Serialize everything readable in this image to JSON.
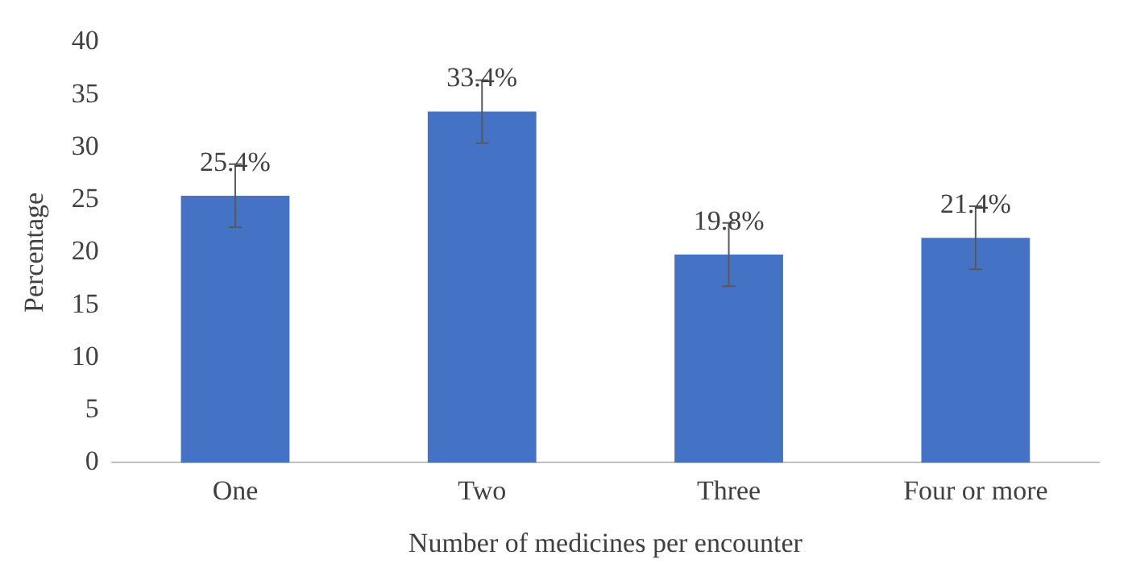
{
  "chart_data": {
    "type": "bar",
    "xlabel": "Number of medicines per encounter",
    "ylabel": "Percentage",
    "categories": [
      "One",
      "Two",
      "Three",
      "Four or more"
    ],
    "values": [
      25.4,
      33.4,
      19.8,
      21.4
    ],
    "errors": [
      3,
      3,
      3,
      3
    ],
    "value_labels": [
      "25.4%",
      "33.4%",
      "19.8%",
      "21.4%"
    ],
    "color": "#4472c4",
    "ylim": [
      0,
      40
    ],
    "yticks": [
      0,
      5,
      10,
      15,
      20,
      25,
      30,
      35,
      40
    ]
  }
}
